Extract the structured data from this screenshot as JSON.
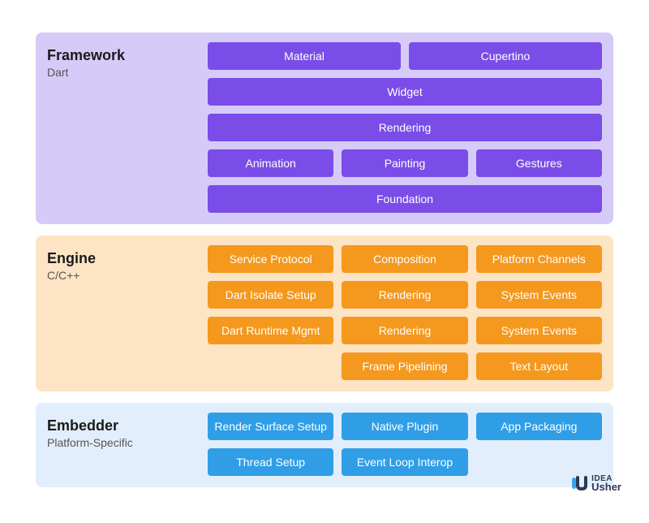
{
  "layers": [
    {
      "id": "framework",
      "title": "Framework",
      "subtitle": "Dart",
      "background": "#d6caf8",
      "title_color": "#1a1a1a",
      "subtitle_color": "#555555",
      "pill_bg": "#7a4de8",
      "pill_text": "#ffffff",
      "rows": [
        [
          {
            "label": "Material"
          },
          {
            "label": "Cupertino"
          }
        ],
        [
          {
            "label": "Widget"
          }
        ],
        [
          {
            "label": "Rendering"
          }
        ],
        [
          {
            "label": "Animation"
          },
          {
            "label": "Painting"
          },
          {
            "label": "Gestures"
          }
        ],
        [
          {
            "label": "Foundation"
          }
        ]
      ]
    },
    {
      "id": "engine",
      "title": "Engine",
      "subtitle": "C/C++",
      "background": "#fde4c4",
      "title_color": "#1a1a1a",
      "subtitle_color": "#555555",
      "pill_bg": "#f4981e",
      "pill_text": "#ffffff",
      "rows": [
        [
          {
            "label": "Service Protocol"
          },
          {
            "label": "Composition"
          },
          {
            "label": "Platform Channels"
          }
        ],
        [
          {
            "label": "Dart Isolate Setup"
          },
          {
            "label": "Rendering"
          },
          {
            "label": "System Events"
          }
        ],
        [
          {
            "label": "Dart Runtime Mgmt"
          },
          {
            "label": "Rendering"
          },
          {
            "label": "System Events"
          }
        ],
        [
          {
            "empty": true
          },
          {
            "label": "Frame Pipelining"
          },
          {
            "label": "Text Layout"
          }
        ]
      ]
    },
    {
      "id": "embedder",
      "title": "Embedder",
      "subtitle": "Platform-Specific",
      "background": "#e3eefc",
      "title_color": "#1a1a1a",
      "subtitle_color": "#555555",
      "pill_bg": "#2f9ee6",
      "pill_text": "#ffffff",
      "rows": [
        [
          {
            "label": "Render Surface Setup"
          },
          {
            "label": "Native Plugin"
          },
          {
            "label": "App Packaging"
          }
        ],
        [
          {
            "label": "Thread Setup"
          },
          {
            "label": "Event Loop Interop"
          },
          {
            "empty": true
          }
        ]
      ]
    }
  ],
  "logo": {
    "accent": "#3aa4e8",
    "dark": "#2d3a56",
    "top": "IDEA",
    "bottom": "Usher"
  }
}
